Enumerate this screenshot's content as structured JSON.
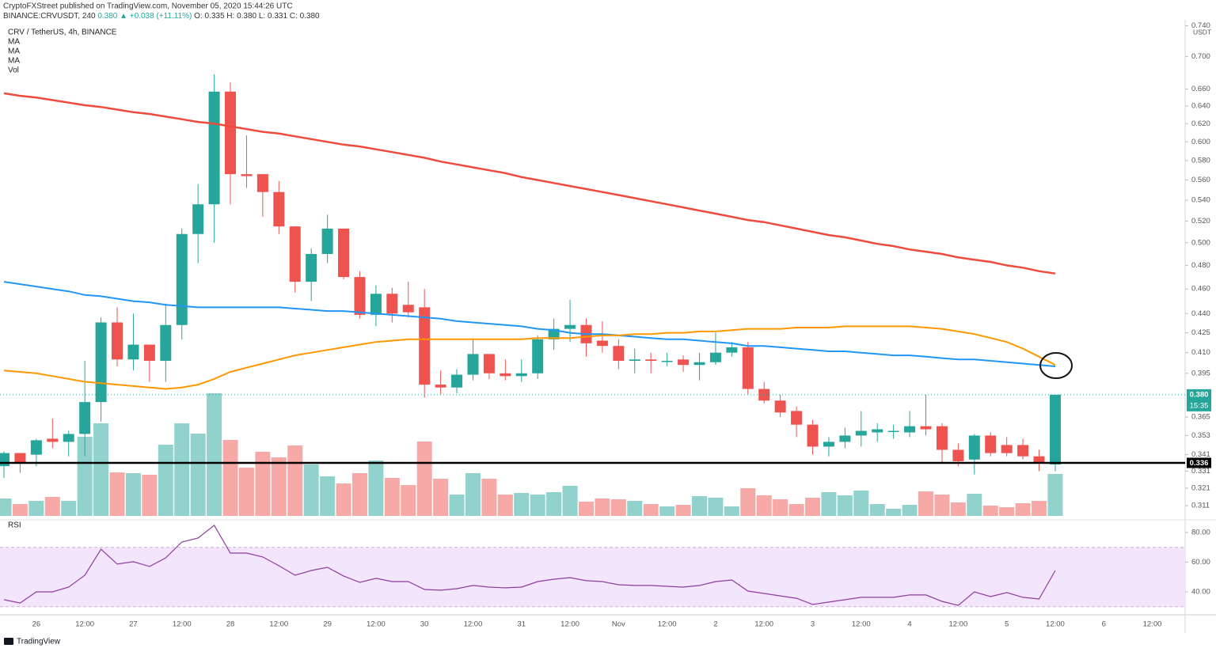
{
  "header": {
    "publisher": "CryptoFXStreet published on TradingView.com, November 05, 2020 15:44:26 UTC",
    "symbol": "BINANCE:CRVUSDT, 240",
    "last": "0.380",
    "change": "▲ +0.038 (+11.11%)",
    "ohlc": "O: 0.335 H: 0.380 L: 0.331 C: 0.380"
  },
  "footer": {
    "brand": "TradingView"
  },
  "chart_data": {
    "type": "candlestick",
    "title": "CRV / TetherUS, 4h, BINANCE",
    "y_unit": "USDT",
    "log": true,
    "grid": false,
    "ylim": [
      0.304,
      0.748
    ],
    "yticks": [
      {
        "value": 0.74,
        "label": "0.740"
      },
      {
        "value": 0.7,
        "label": "0.700"
      },
      {
        "value": 0.66,
        "label": "0.660"
      },
      {
        "value": 0.64,
        "label": "0.640"
      },
      {
        "value": 0.62,
        "label": "0.620"
      },
      {
        "value": 0.6,
        "label": "0.600"
      },
      {
        "value": 0.58,
        "label": "0.580"
      },
      {
        "value": 0.56,
        "label": "0.560"
      },
      {
        "value": 0.54,
        "label": "0.540"
      },
      {
        "value": 0.52,
        "label": "0.520"
      },
      {
        "value": 0.5,
        "label": "0.500"
      },
      {
        "value": 0.48,
        "label": "0.480"
      },
      {
        "value": 0.46,
        "label": "0.460"
      },
      {
        "value": 0.44,
        "label": "0.440"
      },
      0.425,
      {
        "value": 0.41,
        "label": "0.410"
      },
      0.395,
      0.365,
      0.353,
      0.341,
      0.331,
      0.321,
      0.311
    ],
    "categories": [
      null,
      null,
      "26",
      null,
      null,
      "12:00",
      null,
      null,
      "27",
      null,
      null,
      "12:00",
      null,
      null,
      "28",
      null,
      null,
      "12:00",
      null,
      null,
      "29",
      null,
      null,
      "12:00",
      null,
      null,
      "30",
      null,
      null,
      "12:00",
      null,
      null,
      "31",
      null,
      null,
      "12:00",
      null,
      null,
      "Nov",
      null,
      null,
      "12:00",
      null,
      null,
      "2",
      null,
      null,
      "12:00",
      null,
      null,
      "3",
      null,
      null,
      "12:00",
      null,
      null,
      "4",
      null,
      null,
      "12:00",
      null,
      null,
      "5",
      null,
      null,
      "12:00",
      null,
      null,
      "6",
      null,
      null,
      "12:00",
      null,
      null
    ],
    "candles": {
      "up_color": "#26a69a",
      "down_color": "#ef5350",
      "open": [
        0.334,
        0.342,
        0.341,
        0.351,
        0.349,
        0.354,
        0.375,
        0.433,
        0.405,
        0.416,
        0.404,
        0.431,
        0.508,
        0.536,
        0.657,
        0.566,
        0.566,
        0.548,
        0.515,
        0.466,
        0.49,
        0.513,
        0.47,
        0.439,
        0.456,
        0.447,
        0.445,
        0.387,
        0.385,
        0.394,
        0.409,
        0.395,
        0.393,
        0.395,
        0.42,
        0.428,
        0.431,
        0.419,
        0.415,
        0.404,
        0.405,
        0.404,
        0.405,
        0.401,
        0.403,
        0.41,
        0.414,
        0.384,
        0.376,
        0.369,
        0.36,
        0.346,
        0.349,
        0.353,
        0.355,
        0.356,
        0.355,
        0.359,
        0.359,
        0.344,
        0.338,
        0.353,
        0.347,
        0.347,
        0.34,
        0.335,
        null,
        null,
        null,
        null,
        null,
        null,
        null,
        null
      ],
      "high": [
        0.343,
        0.342,
        0.351,
        0.364,
        0.356,
        0.404,
        0.437,
        0.445,
        0.44,
        0.416,
        0.448,
        0.513,
        0.556,
        0.678,
        0.668,
        0.607,
        0.566,
        0.559,
        0.515,
        0.495,
        0.526,
        0.513,
        0.475,
        0.463,
        0.461,
        0.466,
        0.46,
        0.397,
        0.398,
        0.42,
        0.409,
        0.405,
        0.405,
        0.423,
        0.436,
        0.451,
        0.436,
        0.434,
        0.42,
        0.413,
        0.41,
        0.41,
        0.408,
        0.41,
        0.425,
        0.418,
        0.418,
        0.389,
        0.38,
        0.372,
        0.363,
        0.352,
        0.358,
        0.369,
        0.361,
        0.36,
        0.369,
        0.38,
        0.361,
        0.348,
        0.354,
        0.355,
        0.352,
        0.351,
        0.344,
        0.38,
        null,
        null,
        null,
        null,
        null,
        null,
        null,
        null
      ],
      "low": [
        0.327,
        0.33,
        0.334,
        0.345,
        0.34,
        0.34,
        0.362,
        0.4,
        0.397,
        0.389,
        0.389,
        0.42,
        0.482,
        0.5,
        0.536,
        0.552,
        0.524,
        0.508,
        0.457,
        0.45,
        0.482,
        0.468,
        0.436,
        0.43,
        0.433,
        0.437,
        0.378,
        0.38,
        0.381,
        0.39,
        0.391,
        0.39,
        0.389,
        0.391,
        0.412,
        0.418,
        0.407,
        0.41,
        0.398,
        0.395,
        0.395,
        0.4,
        0.396,
        0.39,
        0.401,
        0.407,
        0.38,
        0.374,
        0.365,
        0.352,
        0.341,
        0.34,
        0.345,
        0.346,
        0.349,
        0.351,
        0.352,
        0.353,
        0.336,
        0.334,
        0.329,
        0.34,
        0.34,
        0.338,
        0.331,
        0.331,
        null,
        null,
        null,
        null,
        null,
        null,
        null,
        null
      ],
      "close": [
        0.342,
        0.336,
        0.35,
        0.349,
        0.354,
        0.375,
        0.433,
        0.405,
        0.416,
        0.404,
        0.431,
        0.508,
        0.536,
        0.657,
        0.566,
        0.564,
        0.548,
        0.515,
        0.466,
        0.49,
        0.513,
        0.47,
        0.439,
        0.456,
        0.44,
        0.441,
        0.387,
        0.385,
        0.394,
        0.409,
        0.395,
        0.393,
        0.395,
        0.42,
        0.428,
        0.431,
        0.417,
        0.415,
        0.404,
        0.405,
        0.404,
        0.404,
        0.401,
        0.403,
        0.41,
        0.414,
        0.384,
        0.376,
        0.368,
        0.36,
        0.346,
        0.349,
        0.353,
        0.356,
        0.357,
        0.356,
        0.359,
        0.357,
        0.344,
        0.337,
        0.353,
        0.342,
        0.342,
        0.34,
        0.336,
        0.38,
        null,
        null,
        null,
        null,
        null,
        null,
        null,
        null
      ]
    },
    "moving_averages": [
      {
        "name": "MA",
        "color": "#ef4b3c",
        "values": [
          0.655,
          0.652,
          0.65,
          0.647,
          0.644,
          0.641,
          0.639,
          0.636,
          0.633,
          0.631,
          0.628,
          0.625,
          0.622,
          0.62,
          0.617,
          0.614,
          0.611,
          0.609,
          0.606,
          0.603,
          0.6,
          0.597,
          0.595,
          0.592,
          0.589,
          0.586,
          0.583,
          0.579,
          0.576,
          0.573,
          0.57,
          0.567,
          0.563,
          0.56,
          0.557,
          0.554,
          0.551,
          0.548,
          0.545,
          0.542,
          0.539,
          0.536,
          0.533,
          0.53,
          0.527,
          0.524,
          0.521,
          0.519,
          0.516,
          0.513,
          0.51,
          0.507,
          0.505,
          0.502,
          0.499,
          0.497,
          0.494,
          0.492,
          0.49,
          0.487,
          0.485,
          0.483,
          0.48,
          0.478,
          0.475,
          0.473,
          null,
          null,
          null,
          null,
          null,
          null,
          null,
          null
        ]
      },
      {
        "name": "MA",
        "color": "#2196f3",
        "values": [
          0.466,
          0.464,
          0.462,
          0.46,
          0.458,
          0.455,
          0.454,
          0.452,
          0.45,
          0.449,
          0.447,
          0.446,
          0.445,
          0.445,
          0.445,
          0.445,
          0.445,
          0.445,
          0.444,
          0.443,
          0.442,
          0.442,
          0.441,
          0.44,
          0.439,
          0.438,
          0.437,
          0.436,
          0.434,
          0.433,
          0.432,
          0.431,
          0.43,
          0.428,
          0.427,
          0.425,
          0.424,
          0.424,
          0.423,
          0.422,
          0.421,
          0.42,
          0.42,
          0.419,
          0.418,
          0.417,
          0.415,
          0.415,
          0.414,
          0.413,
          0.412,
          0.411,
          0.411,
          0.41,
          0.409,
          0.408,
          0.408,
          0.407,
          0.406,
          0.405,
          0.405,
          0.404,
          0.403,
          0.402,
          0.401,
          0.4,
          null,
          null,
          null,
          null,
          null,
          null,
          null,
          null
        ]
      },
      {
        "name": "MA",
        "color": "#ff9800",
        "values": [
          0.397,
          0.396,
          0.395,
          0.393,
          0.391,
          0.389,
          0.388,
          0.387,
          0.386,
          0.385,
          0.384,
          0.385,
          0.387,
          0.391,
          0.396,
          0.399,
          0.402,
          0.405,
          0.408,
          0.41,
          0.412,
          0.414,
          0.416,
          0.418,
          0.419,
          0.42,
          0.42,
          0.42,
          0.42,
          0.42,
          0.42,
          0.42,
          0.42,
          0.421,
          0.421,
          0.421,
          0.422,
          0.423,
          0.423,
          0.424,
          0.424,
          0.425,
          0.425,
          0.426,
          0.426,
          0.427,
          0.428,
          0.428,
          0.428,
          0.429,
          0.429,
          0.429,
          0.43,
          0.43,
          0.43,
          0.43,
          0.43,
          0.429,
          0.428,
          0.426,
          0.424,
          0.421,
          0.418,
          0.413,
          0.407,
          0.401,
          null,
          null,
          null,
          null,
          null,
          null,
          null,
          null
        ]
      }
    ],
    "volume": {
      "name": "Vol",
      "up_color": "rgba(38,166,154,0.5)",
      "down_color": "rgba(239,83,80,0.5)",
      "values": [
        22,
        15,
        19,
        24,
        19,
        100,
        117,
        55,
        54,
        52,
        90,
        117,
        104,
        155,
        96,
        61,
        81,
        74,
        89,
        65,
        50,
        41,
        54,
        70,
        48,
        39,
        94,
        47,
        27,
        54,
        47,
        27,
        29,
        27,
        30,
        38,
        18,
        22,
        21,
        19,
        15,
        12,
        14,
        25,
        23,
        12,
        35,
        26,
        21,
        15,
        23,
        30,
        26,
        32,
        15,
        9,
        14,
        31,
        27,
        17,
        28,
        13,
        11,
        16,
        19,
        53,
        null,
        null,
        null,
        null,
        null,
        null,
        null,
        null
      ]
    },
    "hline": 0.336,
    "price_line": {
      "label": "0.380",
      "countdown": "15:35"
    },
    "rsi": {
      "name": "RSI",
      "color": "#8e3c9e",
      "band_color": "#f3e5fc",
      "ylim": [
        25.6,
        86.9
      ],
      "band": [
        30,
        70
      ],
      "yticks": [
        {
          "value": 80,
          "label": "80.00"
        },
        {
          "value": 60,
          "label": "60.00"
        },
        {
          "value": 40,
          "label": "40.00"
        }
      ],
      "values": [
        34.7,
        32.5,
        40,
        40,
        43.2,
        51.2,
        68.8,
        58.7,
        60.3,
        57.1,
        62.9,
        73.6,
        76.3,
        84.8,
        66.1,
        66.1,
        63.5,
        57.6,
        51.2,
        54.4,
        56.5,
        50.7,
        46.4,
        49.1,
        46.9,
        46.9,
        41.6,
        41.1,
        42.1,
        44.3,
        43.2,
        42.7,
        43.2,
        46.9,
        48.5,
        49.6,
        47.5,
        46.9,
        44.8,
        44.3,
        44.3,
        43.7,
        43.2,
        44.3,
        46.9,
        48,
        40.5,
        38.9,
        37.3,
        35.7,
        31.5,
        33.1,
        34.7,
        36.3,
        36.3,
        36.3,
        37.9,
        37.9,
        33.6,
        30.9,
        40,
        36.8,
        39.5,
        36.3,
        35.2,
        54.4,
        null,
        null,
        null,
        null,
        null,
        null,
        null,
        null
      ]
    }
  }
}
